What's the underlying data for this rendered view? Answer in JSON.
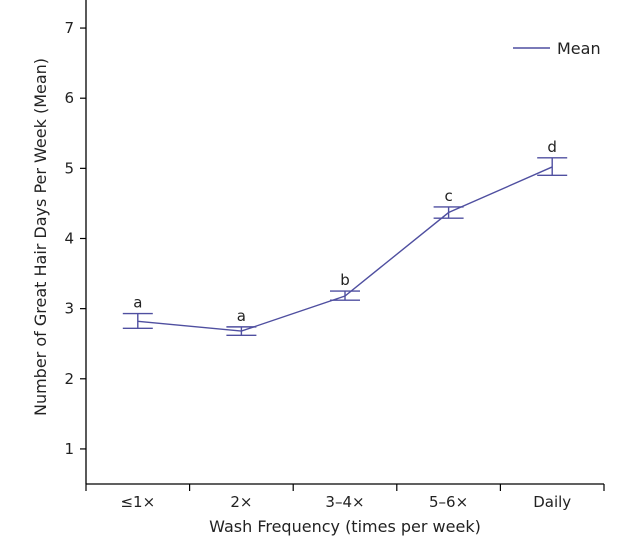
{
  "chart_data": {
    "type": "line",
    "categories": [
      "≤1×",
      "2×",
      "3–4×",
      "5–6×",
      "Daily"
    ],
    "series": [
      {
        "name": "Mean",
        "values": [
          2.82,
          2.68,
          3.18,
          4.37,
          5.02
        ],
        "error_low": [
          2.72,
          2.62,
          3.12,
          4.29,
          4.9
        ],
        "error_high": [
          2.93,
          2.74,
          3.25,
          4.45,
          5.15
        ],
        "labels": [
          "a",
          "a",
          "b",
          "c",
          "d"
        ],
        "color": "#4f4fa0"
      }
    ],
    "xlabel": "Wash Frequency (times per week)",
    "ylabel": "Number of Great Hair Days Per Week (Mean)",
    "ylim": [
      0.5,
      7.4
    ],
    "yticks": [
      1,
      2,
      3,
      4,
      5,
      6,
      7
    ],
    "grid": false,
    "legend": "top-right"
  }
}
